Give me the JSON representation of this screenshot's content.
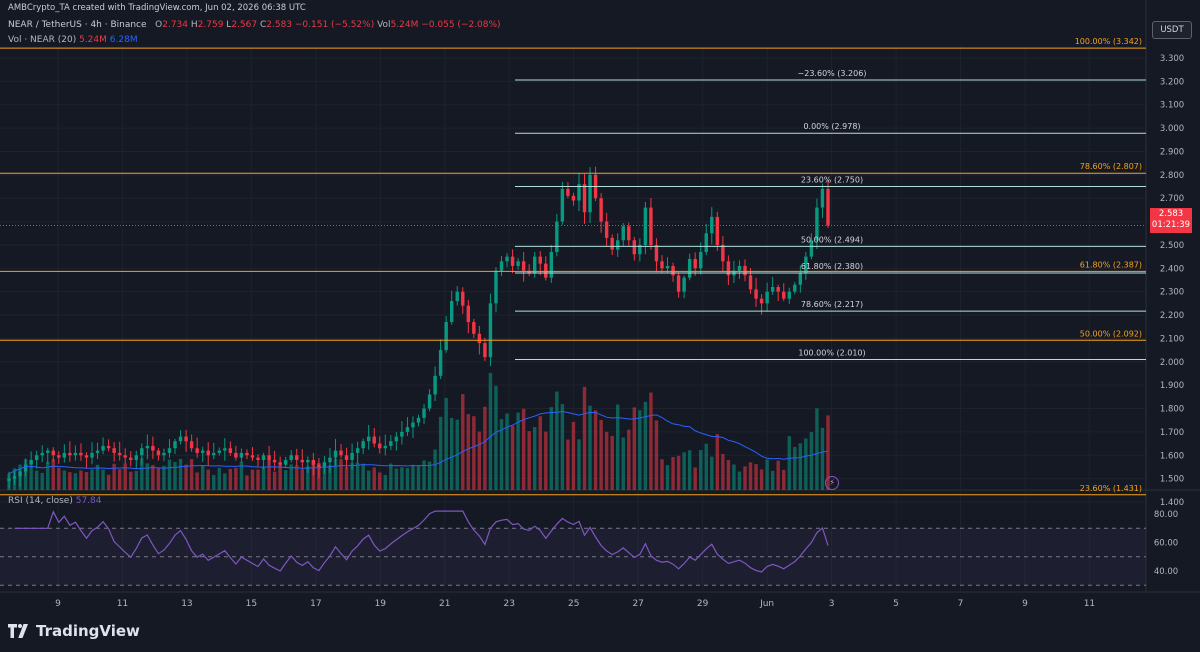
{
  "header": {
    "credit": "AMBCrypto_TA created with TradingView.com, Jun 02, 2026 06:38 UTC",
    "symbol": "NEAR / TetherUS · 4h · Binance",
    "o": "O",
    "o_val": "2.734",
    "h": "H",
    "h_val": "2.759",
    "l": "L",
    "l_val": "2.567",
    "c": "C",
    "c_val": "2.583",
    "change": "−0.151 (−5.52%)",
    "vol_label": "Vol",
    "vol_val": "5.24M",
    "vol_change": "−0.055 (−2.08%)",
    "vol_ma_label": "Vol · NEAR (20)",
    "vol_ma_a": "5.24M",
    "vol_ma_b": "6.28M",
    "rsi_label": "RSI (14, close)",
    "rsi_val": "57.84"
  },
  "currency_button": "USDT",
  "last_price": {
    "price": "2.583",
    "countdown": "01:21:39"
  },
  "brand": "TradingView",
  "chart_data": [
    {
      "type": "candlestick",
      "symbol": "NEAR/USDT",
      "timeframe": "4h",
      "y_ticks": [
        "3.300",
        "3.200",
        "3.100",
        "3.000",
        "2.900",
        "2.800",
        "2.700",
        "2.600",
        "2.500",
        "2.400",
        "2.300",
        "2.200",
        "2.100",
        "2.000",
        "1.900",
        "1.800",
        "1.700",
        "1.600",
        "1.500",
        "1.400"
      ],
      "ylim": [
        1.35,
        3.37
      ],
      "x_ticks": [
        "9",
        "11",
        "13",
        "15",
        "17",
        "19",
        "21",
        "23",
        "25",
        "27",
        "29",
        "Jun",
        "3",
        "5",
        "7",
        "9",
        "11"
      ],
      "closes": [
        1.5,
        1.51,
        1.53,
        1.56,
        1.58,
        1.6,
        1.61,
        1.62,
        1.6,
        1.59,
        1.61,
        1.6,
        1.61,
        1.6,
        1.59,
        1.61,
        1.62,
        1.64,
        1.63,
        1.61,
        1.6,
        1.59,
        1.58,
        1.6,
        1.63,
        1.64,
        1.62,
        1.6,
        1.61,
        1.63,
        1.66,
        1.68,
        1.66,
        1.63,
        1.61,
        1.62,
        1.6,
        1.61,
        1.62,
        1.63,
        1.61,
        1.59,
        1.61,
        1.6,
        1.59,
        1.58,
        1.6,
        1.58,
        1.57,
        1.56,
        1.58,
        1.6,
        1.58,
        1.57,
        1.58,
        1.56,
        1.55,
        1.57,
        1.59,
        1.62,
        1.6,
        1.58,
        1.61,
        1.63,
        1.66,
        1.68,
        1.65,
        1.63,
        1.64,
        1.66,
        1.68,
        1.7,
        1.72,
        1.74,
        1.76,
        1.8,
        1.86,
        1.94,
        2.05,
        2.17,
        2.26,
        2.3,
        2.24,
        2.17,
        2.12,
        2.08,
        2.02,
        2.25,
        2.39,
        2.43,
        2.45,
        2.41,
        2.43,
        2.39,
        2.38,
        2.45,
        2.42,
        2.36,
        2.47,
        2.6,
        2.74,
        2.71,
        2.69,
        2.76,
        2.64,
        2.8,
        2.7,
        2.6,
        2.53,
        2.48,
        2.52,
        2.58,
        2.52,
        2.46,
        2.5,
        2.66,
        2.5,
        2.43,
        2.4,
        2.41,
        2.37,
        2.3,
        2.36,
        2.44,
        2.4,
        2.47,
        2.55,
        2.62,
        2.5,
        2.43,
        2.37,
        2.39,
        2.41,
        2.37,
        2.31,
        2.27,
        2.25,
        2.3,
        2.32,
        2.3,
        2.27,
        2.3,
        2.33,
        2.38,
        2.45,
        2.52,
        2.66,
        2.74,
        2.583
      ],
      "fib_left": [
        {
          "label": "100.00% (3.342)",
          "price": 3.342
        },
        {
          "label": "78.60% (2.807)",
          "price": 2.807
        },
        {
          "label": "61.80% (2.387)",
          "price": 2.387
        },
        {
          "label": "50.00% (2.092)",
          "price": 2.092
        },
        {
          "label": "23.60% (1.431)",
          "price": 1.431
        }
      ],
      "fib_right": [
        {
          "label": "−23.60% (3.206)",
          "price": 3.206
        },
        {
          "label": "0.00% (2.978)",
          "price": 2.978
        },
        {
          "label": "23.60% (2.750)",
          "price": 2.75
        },
        {
          "label": "50.00% (2.494)",
          "price": 2.494
        },
        {
          "label": "61.80% (2.380)",
          "price": 2.38
        },
        {
          "label": "78.60% (2.217)",
          "price": 2.217
        },
        {
          "label": "100.00% (2.010)",
          "price": 2.01
        }
      ],
      "colors": {
        "up": "#089981",
        "down": "#f23645",
        "fib_orange": "#f7a21b",
        "fib_teal": "#b2dfdb",
        "vol_ma": "#2962ff",
        "rsi": "#7e57c2"
      }
    },
    {
      "type": "line",
      "title": "RSI (14, close)",
      "y_ticks": [
        "80.00",
        "60.00",
        "40.00"
      ],
      "ylim": [
        30,
        85
      ],
      "bands": [
        70,
        50,
        30
      ],
      "last": 57.84
    }
  ]
}
